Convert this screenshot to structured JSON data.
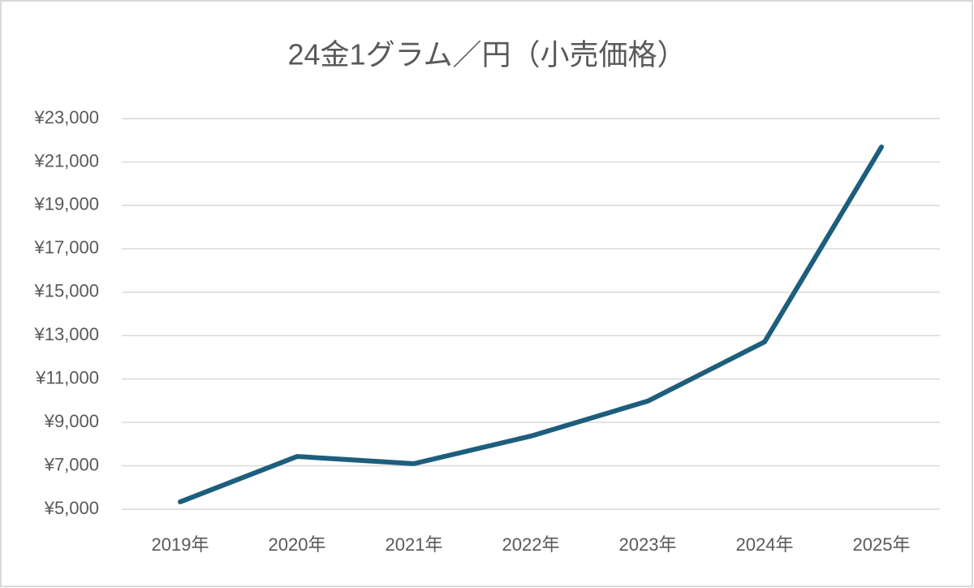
{
  "chart_data": {
    "type": "line",
    "title": "24金1グラム／円（小売価格）",
    "categories": [
      "2019年",
      "2020年",
      "2021年",
      "2022年",
      "2023年",
      "2024年",
      "2025年"
    ],
    "series": [
      {
        "name": "24金1グラム",
        "color": "#1d5e7c",
        "values": [
          5340,
          7430,
          7100,
          8370,
          9980,
          12710,
          21690
        ]
      }
    ],
    "ylim": [
      5000,
      23000
    ],
    "yticks": [
      {
        "value": 5000,
        "label": "¥5,000"
      },
      {
        "value": 7000,
        "label": "¥7,000"
      },
      {
        "value": 9000,
        "label": "¥9,000"
      },
      {
        "value": 11000,
        "label": "¥11,000"
      },
      {
        "value": 13000,
        "label": "¥13,000"
      },
      {
        "value": 15000,
        "label": "¥15,000"
      },
      {
        "value": 17000,
        "label": "¥17,000"
      },
      {
        "value": 19000,
        "label": "¥19,000"
      },
      {
        "value": 21000,
        "label": "¥21,000"
      },
      {
        "value": 23000,
        "label": "¥23,000"
      }
    ],
    "grid": true
  }
}
